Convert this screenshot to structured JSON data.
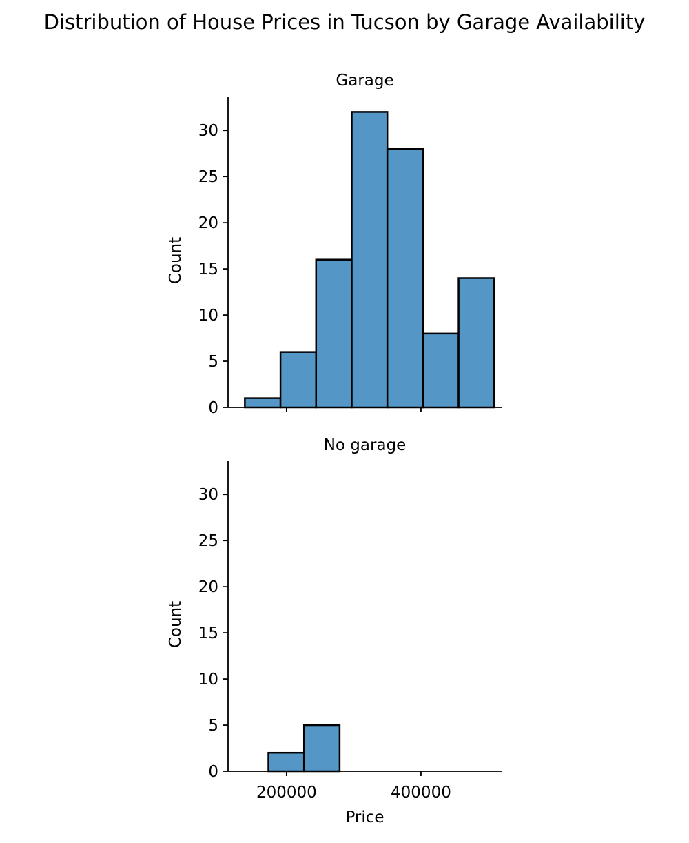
{
  "chart_data": {
    "type": "bar",
    "title": "Distribution of House Prices in Tucson by Garage Availability",
    "xlabel": "Price",
    "ylabel": "Count",
    "xlim": [
      113000,
      520000
    ],
    "ylim": [
      0,
      33.6
    ],
    "x_ticks": [
      200000,
      400000
    ],
    "y_ticks": [
      0,
      5,
      10,
      15,
      20,
      25,
      30
    ],
    "bar_color": "#5497c7",
    "edge_color": "#000000",
    "grid": false,
    "panels": [
      {
        "title": "Garage",
        "bins": [
          {
            "x0": 138000,
            "x1": 191000,
            "count": 1
          },
          {
            "x0": 191000,
            "x1": 244000,
            "count": 6
          },
          {
            "x0": 244000,
            "x1": 297000,
            "count": 16
          },
          {
            "x0": 297000,
            "x1": 350000,
            "count": 32
          },
          {
            "x0": 350000,
            "x1": 403000,
            "count": 28
          },
          {
            "x0": 403000,
            "x1": 456000,
            "count": 8
          },
          {
            "x0": 456000,
            "x1": 509000,
            "count": 14
          }
        ],
        "show_xticklabels": false,
        "show_xlabel": false
      },
      {
        "title": "No garage",
        "bins": [
          {
            "x0": 173000,
            "x1": 226000,
            "count": 2
          },
          {
            "x0": 226000,
            "x1": 279000,
            "count": 5
          }
        ],
        "show_xticklabels": true,
        "show_xlabel": true
      }
    ]
  }
}
